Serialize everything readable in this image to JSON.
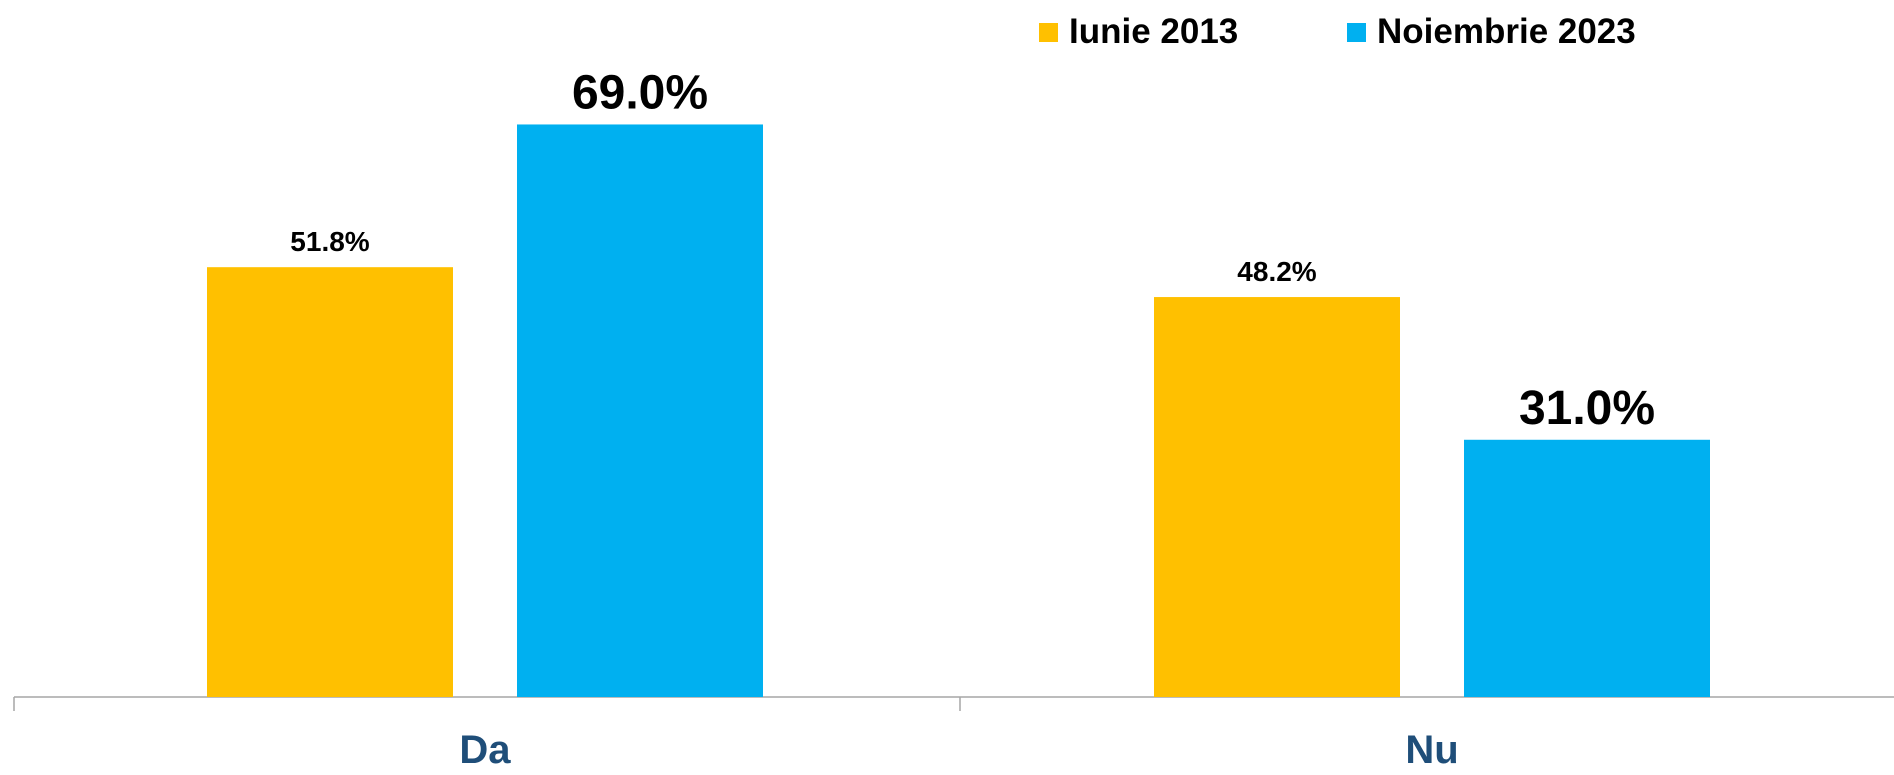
{
  "chart_data": {
    "type": "bar",
    "categories": [
      "Da",
      "Nu"
    ],
    "series": [
      {
        "name": "Iunie 2013",
        "values": [
          51.8,
          48.2
        ],
        "labels": [
          "51.8%",
          "48.2%"
        ],
        "color": "#FFC000"
      },
      {
        "name": "Noiembrie 2023",
        "values": [
          69.0,
          31.0
        ],
        "labels": [
          "69.0%",
          "31.0%"
        ],
        "color": "#00B0F0"
      }
    ],
    "ylim": [
      0,
      84
    ],
    "grid": false,
    "legend_position": "top-right",
    "axis_color": "#A6A6A6",
    "category_label_color": "#1F4E79",
    "data_label_color": "#000000"
  }
}
